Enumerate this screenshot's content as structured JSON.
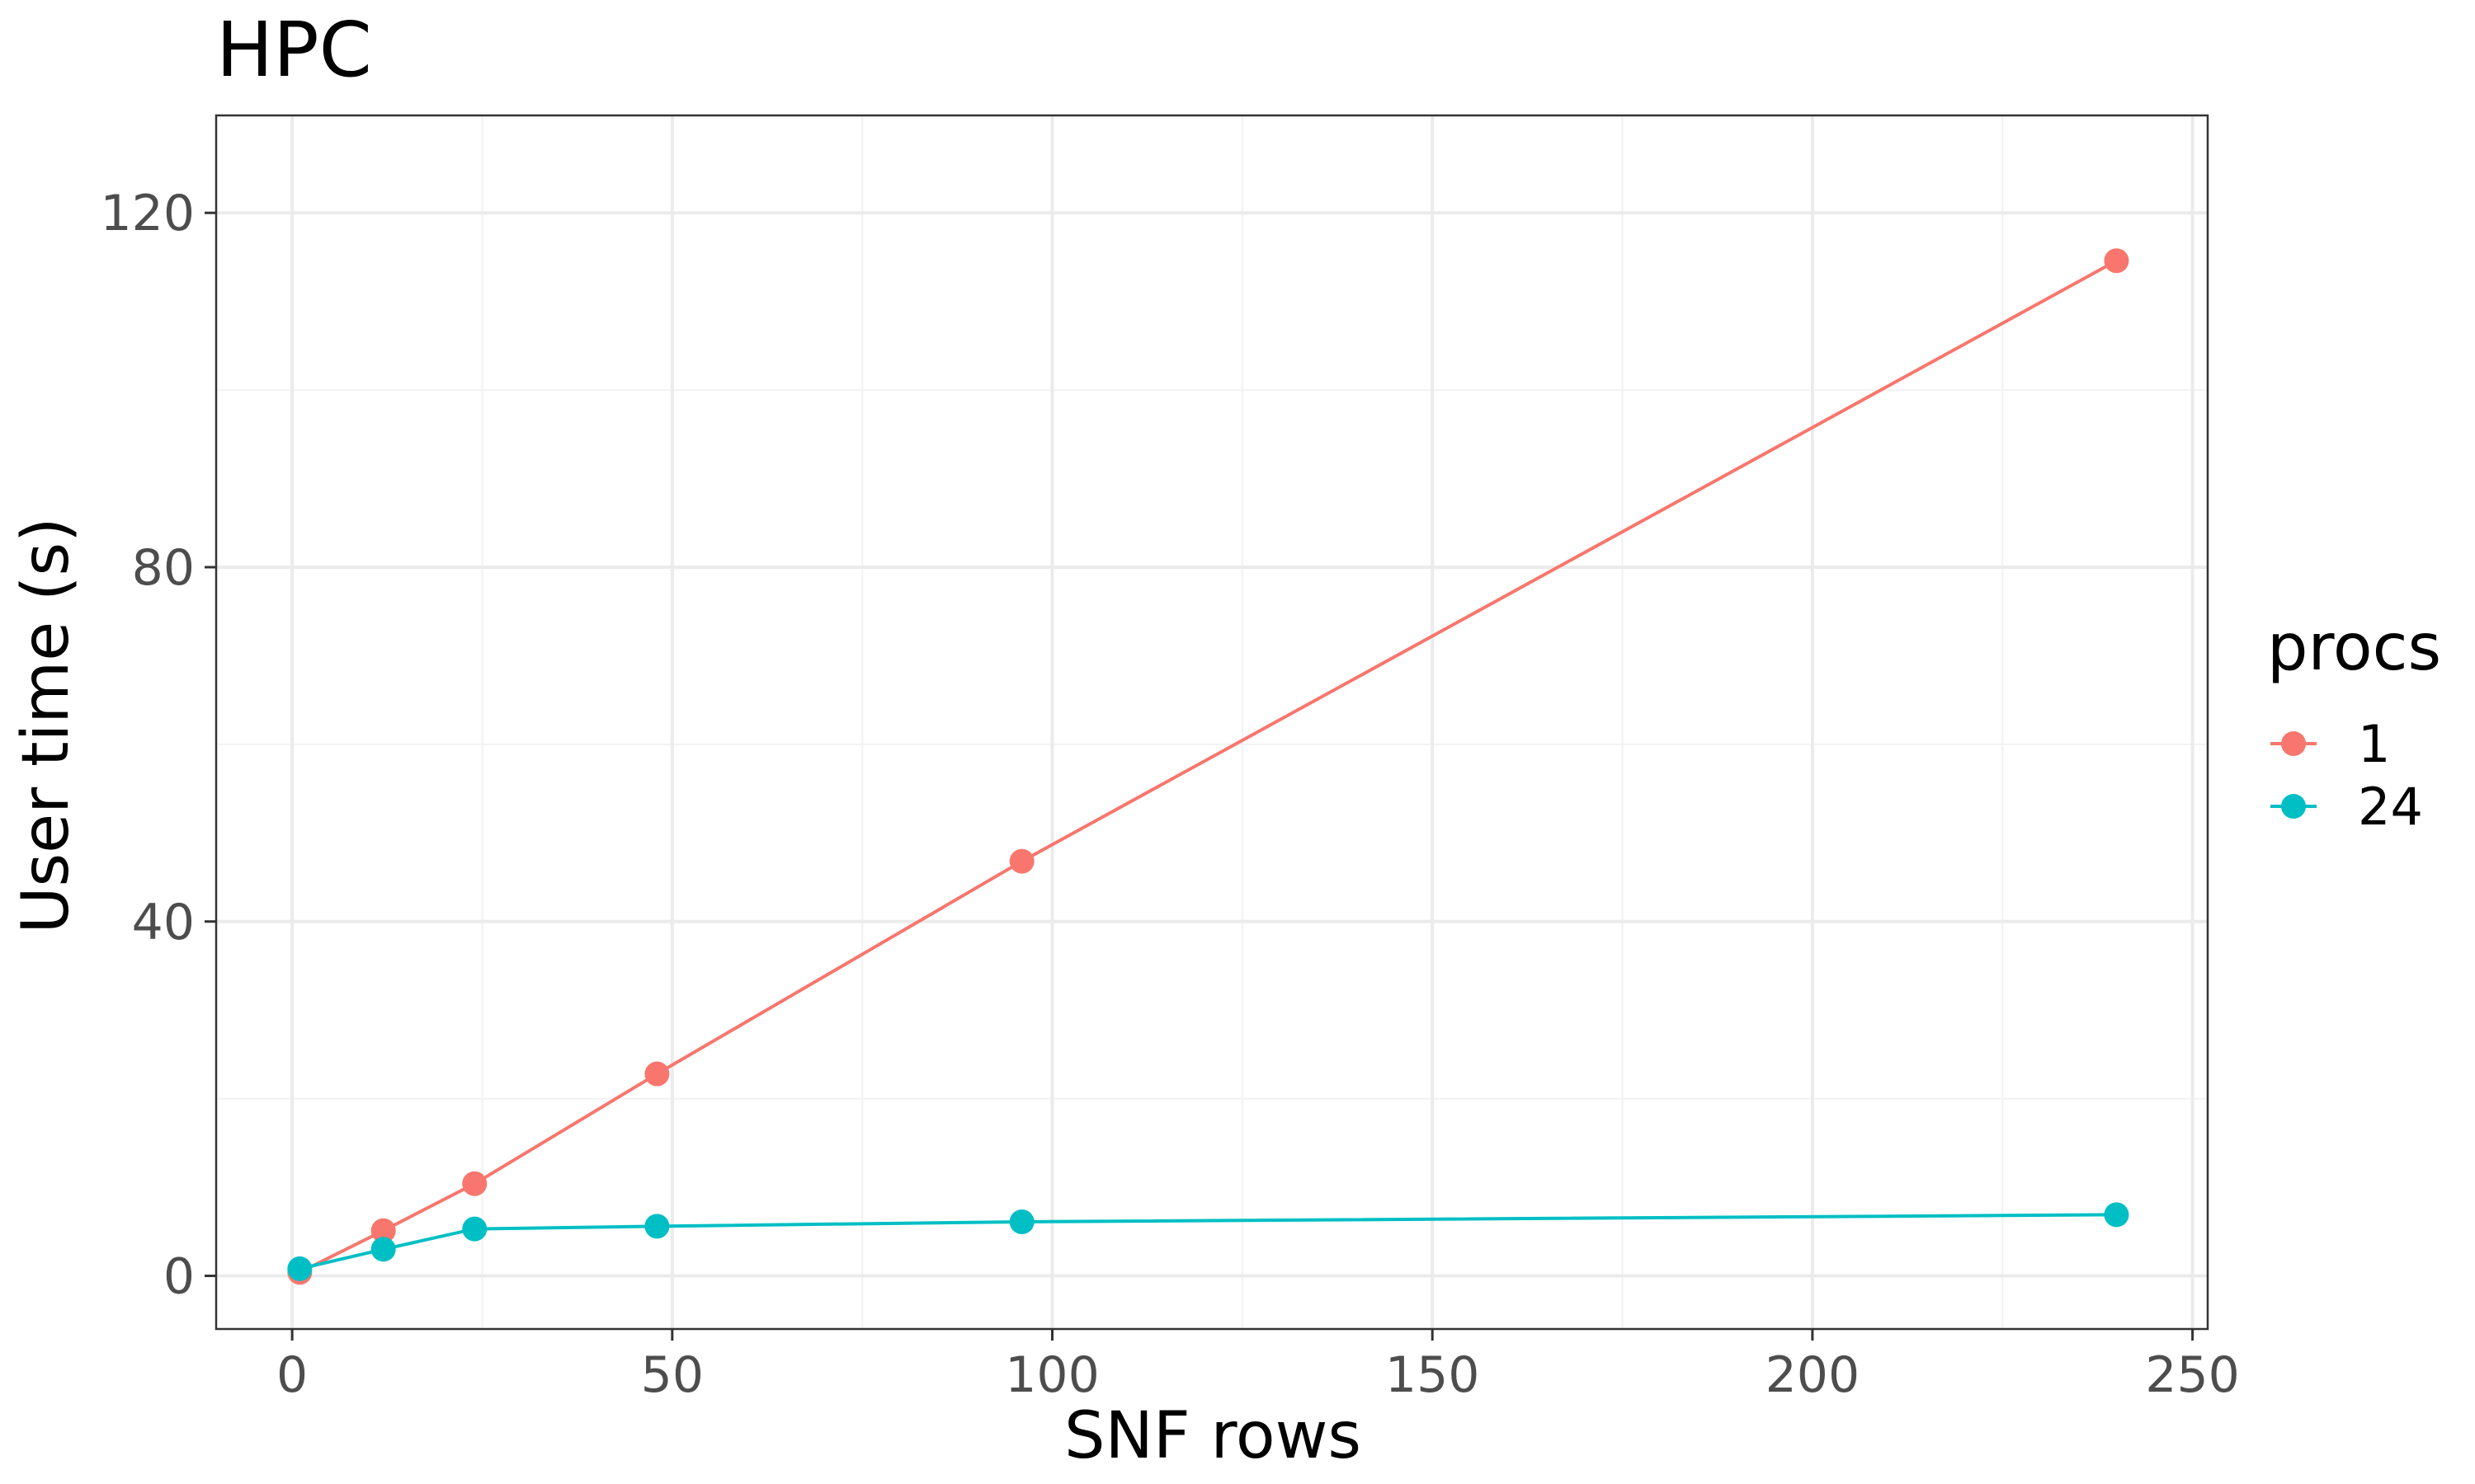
{
  "chart_data": {
    "type": "line",
    "title": "HPC",
    "xlabel": "SNF rows",
    "ylabel": "User time (s)",
    "xlim": [
      -10,
      252
    ],
    "ylim": [
      -6,
      131
    ],
    "x_ticks": [
      0,
      50,
      100,
      150,
      200,
      250
    ],
    "y_ticks": [
      0,
      40,
      80,
      120
    ],
    "x_tick_labels": [
      "0",
      "50",
      "100",
      "150",
      "200",
      "250"
    ],
    "y_tick_labels": [
      "0",
      "40",
      "80",
      "120"
    ],
    "grid": true,
    "legend": {
      "title": "procs",
      "placement": "right"
    },
    "series": [
      {
        "name": "1",
        "color": "#f8766d",
        "x": [
          1,
          12,
          24,
          48,
          96,
          240
        ],
        "y": [
          0.4,
          5.1,
          10.4,
          22.8,
          46.8,
          114.6
        ]
      },
      {
        "name": "24",
        "color": "#00bfc4",
        "x": [
          1,
          12,
          24,
          48,
          96,
          240
        ],
        "y": [
          0.8,
          3.0,
          5.3,
          5.6,
          6.1,
          6.9
        ]
      }
    ]
  }
}
